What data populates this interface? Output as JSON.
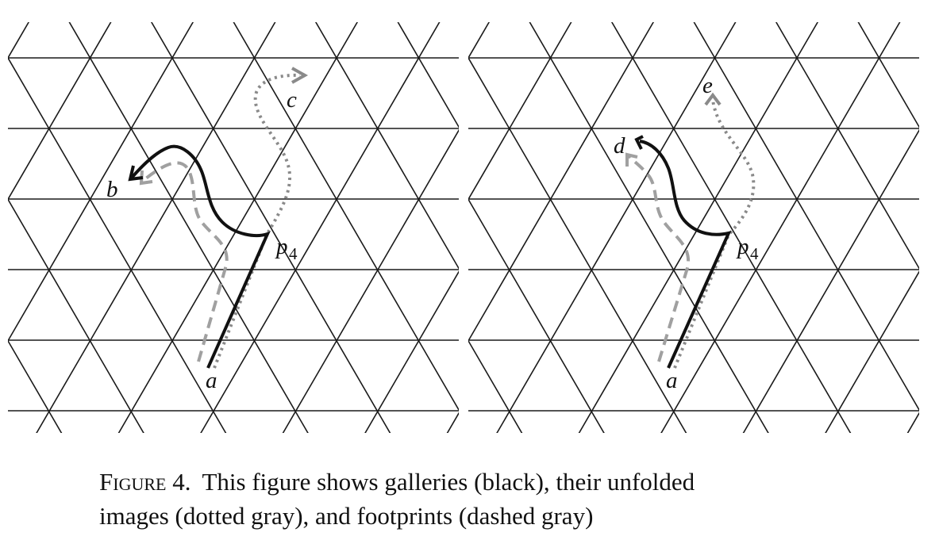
{
  "figure": {
    "panels": [
      {
        "id": "left",
        "labels": {
          "a": "a",
          "b": "b",
          "c": "c",
          "p4": "p",
          "p4_sub": "4"
        }
      },
      {
        "id": "right",
        "labels": {
          "a": "a",
          "d": "d",
          "e": "e",
          "p4": "p",
          "p4_sub": "4"
        }
      }
    ],
    "colors": {
      "lattice": "#1a1a1a",
      "gallery": "#111111",
      "dotted": "#8a8a8a",
      "dashed": "#a0a0a0"
    }
  },
  "caption": {
    "label": "Figure 4.",
    "line1": "This figure shows galleries (black), their unfolded",
    "line2": "images (dotted gray), and footprints (dashed gray)"
  }
}
